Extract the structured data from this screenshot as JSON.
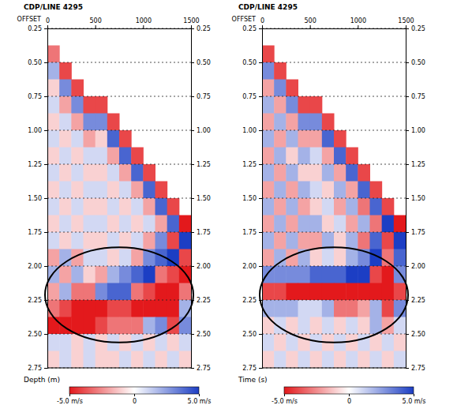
{
  "chart_data": [
    {
      "type": "heatmap",
      "title": "CDP/LINE 4295",
      "x_label": "OFFSET",
      "y_label": "Depth (m)",
      "grid": true,
      "x": [
        62.5,
        187.5,
        312.5,
        437.5,
        562.5,
        687.5,
        812.5,
        937.5,
        1062.5,
        1187.5,
        1312.5,
        1437.5
      ],
      "y": [
        0.3125,
        0.4375,
        0.5625,
        0.6875,
        0.8125,
        0.9375,
        1.0625,
        1.1875,
        1.3125,
        1.4375,
        1.5625,
        1.6875,
        1.8125,
        1.9375,
        2.0625,
        2.1875,
        2.3125,
        2.4375,
        2.5625,
        2.6875
      ],
      "xlim": [
        0,
        1500
      ],
      "xticks": [
        0,
        500,
        1000,
        1500
      ],
      "ylim": [
        0.25,
        2.75
      ],
      "yticks": [
        0.25,
        {
          "value": 0.5,
          "label": "0.50"
        },
        0.75,
        {
          "value": 1,
          "label": "1.00"
        },
        1.25,
        {
          "value": 1.5,
          "label": "1.50"
        },
        1.75,
        {
          "value": 2,
          "label": "2.00"
        },
        2.25,
        {
          "value": 2.5,
          "label": "2.50"
        },
        2.75
      ],
      "cells": [
        [
          null,
          null,
          null,
          null,
          null,
          null,
          null,
          null,
          null,
          null,
          null,
          null
        ],
        [
          -3,
          null,
          null,
          null,
          null,
          null,
          null,
          null,
          null,
          null,
          null,
          null
        ],
        [
          2,
          -4,
          null,
          null,
          null,
          null,
          null,
          null,
          null,
          null,
          null,
          null
        ],
        [
          -1,
          3,
          -4,
          null,
          null,
          null,
          null,
          null,
          null,
          null,
          null,
          null
        ],
        [
          1,
          -2,
          3,
          -4,
          -4,
          null,
          null,
          null,
          null,
          null,
          null,
          null
        ],
        [
          -1,
          1,
          -2,
          3,
          3,
          -4,
          null,
          null,
          null,
          null,
          null,
          null
        ],
        [
          1,
          -1,
          1,
          -2,
          -1,
          4,
          -4,
          null,
          null,
          null,
          null,
          null
        ],
        [
          -1,
          1,
          -1,
          1,
          1,
          -2,
          4,
          -4,
          null,
          null,
          null,
          null
        ],
        [
          1,
          -1,
          1,
          -1,
          -1,
          1,
          -2,
          4,
          -4,
          null,
          null,
          null
        ],
        [
          -1,
          1,
          -1,
          1,
          1,
          -1,
          1,
          -2,
          4,
          -4,
          null,
          null
        ],
        [
          1,
          -1,
          1,
          -1,
          -1,
          1,
          -1,
          1,
          -2,
          4,
          -4,
          null
        ],
        [
          -1,
          1,
          -1,
          1,
          1,
          -1,
          1,
          -1,
          1,
          -2,
          4,
          -5
        ],
        [
          1,
          -1,
          1,
          -1,
          -1,
          1,
          -1,
          1,
          -2,
          3,
          -4,
          5
        ],
        [
          -2,
          2,
          -2,
          1,
          1,
          -1,
          1,
          -2,
          3,
          4,
          5,
          -4
        ],
        [
          2,
          -2,
          2,
          -1,
          -2,
          2,
          3,
          4,
          5,
          -3,
          -4,
          -5
        ],
        [
          -2,
          2,
          -3,
          -3,
          3,
          4,
          4,
          -3,
          -4,
          -5,
          -5,
          -3
        ],
        [
          -3,
          -4,
          -5,
          -5,
          -5,
          -4,
          -4,
          -5,
          -5,
          -5,
          -5,
          2
        ],
        [
          -5,
          -5,
          -5,
          -5,
          -4,
          -3,
          -3,
          -3,
          2,
          3,
          -4,
          3
        ],
        [
          1,
          1,
          -1,
          1,
          -1,
          1,
          -1,
          1,
          -1,
          1,
          -1,
          1
        ],
        [
          -1,
          1,
          -1,
          1,
          -1,
          -1,
          1,
          -1,
          1,
          -1,
          1,
          -1
        ]
      ],
      "colorbar": {
        "range": [
          -5,
          5
        ],
        "ticks": [
          {
            "value": -5,
            "label": "-5.0 m/s"
          },
          0,
          {
            "value": 5,
            "label": "5.0 m/s"
          }
        ]
      }
    },
    {
      "type": "heatmap",
      "title": "CDP/LINE 4295",
      "x_label": "OFFSET",
      "y_label": "Time (s)",
      "grid": true,
      "x": [
        62.5,
        187.5,
        312.5,
        437.5,
        562.5,
        687.5,
        812.5,
        937.5,
        1062.5,
        1187.5,
        1312.5,
        1437.5
      ],
      "y": [
        0.3125,
        0.4375,
        0.5625,
        0.6875,
        0.8125,
        0.9375,
        1.0625,
        1.1875,
        1.3125,
        1.4375,
        1.5625,
        1.6875,
        1.8125,
        1.9375,
        2.0625,
        2.1875,
        2.3125,
        2.4375,
        2.5625,
        2.6875
      ],
      "xlim": [
        0,
        1500
      ],
      "xticks": [
        0,
        500,
        1000,
        1500
      ],
      "ylim": [
        0.25,
        2.75
      ],
      "yticks": [
        0.25,
        {
          "value": 0.5,
          "label": "0.50"
        },
        0.75,
        {
          "value": 1,
          "label": "1.00"
        },
        1.25,
        {
          "value": 1.5,
          "label": "1.50"
        },
        1.75,
        {
          "value": 2,
          "label": "2.00"
        },
        2.25,
        {
          "value": 2.5,
          "label": "2.50"
        },
        2.75
      ],
      "cells": [
        [
          null,
          null,
          null,
          null,
          null,
          null,
          null,
          null,
          null,
          null,
          null,
          null
        ],
        [
          -4,
          null,
          null,
          null,
          null,
          null,
          null,
          null,
          null,
          null,
          null,
          null
        ],
        [
          3,
          -4,
          null,
          null,
          null,
          null,
          null,
          null,
          null,
          null,
          null,
          null
        ],
        [
          -2,
          3,
          -4,
          null,
          null,
          null,
          null,
          null,
          null,
          null,
          null,
          null
        ],
        [
          2,
          -2,
          3,
          -4,
          -4,
          null,
          null,
          null,
          null,
          null,
          null,
          null
        ],
        [
          -2,
          2,
          -2,
          3,
          3,
          -4,
          null,
          null,
          null,
          null,
          null,
          null
        ],
        [
          2,
          -2,
          2,
          -2,
          -2,
          4,
          -4,
          null,
          null,
          null,
          null,
          null
        ],
        [
          -2,
          2,
          -1,
          2,
          1,
          -2,
          4,
          -4,
          null,
          null,
          null,
          null
        ],
        [
          2,
          -2,
          2,
          -1,
          -1,
          2,
          -2,
          4,
          -4,
          null,
          null,
          null
        ],
        [
          -2,
          2,
          -2,
          2,
          1,
          -1,
          2,
          -2,
          4,
          -4,
          null,
          null
        ],
        [
          2,
          -2,
          2,
          -2,
          -1,
          1,
          -2,
          2,
          -3,
          4,
          -4,
          null
        ],
        [
          -2,
          2,
          -2,
          2,
          2,
          -1,
          1,
          -2,
          2,
          -3,
          5,
          -5
        ],
        [
          2,
          -2,
          2,
          -2,
          -2,
          2,
          -1,
          2,
          -3,
          4,
          -4,
          5
        ],
        [
          -2,
          2,
          -2,
          2,
          -1,
          1,
          -1,
          2,
          3,
          5,
          -3,
          4
        ],
        [
          3,
          3,
          3,
          3,
          4,
          4,
          4,
          5,
          5,
          -4,
          -5,
          3
        ],
        [
          -4,
          -4,
          -5,
          -5,
          -5,
          -5,
          -5,
          -5,
          -5,
          -5,
          -5,
          -4
        ],
        [
          2,
          2,
          2,
          1,
          1,
          2,
          -3,
          -3,
          -2,
          2,
          -4,
          3
        ],
        [
          -1,
          1,
          -1,
          1,
          -1,
          1,
          -1,
          1,
          -1,
          2,
          -2,
          1
        ],
        [
          1,
          -1,
          1,
          -1,
          1,
          -1,
          1,
          -1,
          1,
          -1,
          1,
          -1
        ],
        [
          -1,
          1,
          -1,
          1,
          -1,
          1,
          -1,
          1,
          -1,
          1,
          -1,
          1
        ]
      ],
      "colorbar": {
        "range": [
          -5,
          5
        ],
        "ticks": [
          {
            "value": -5,
            "label": "-5.0 m/s"
          },
          0,
          {
            "value": 5,
            "label": "5.0 m/s"
          }
        ]
      }
    }
  ]
}
